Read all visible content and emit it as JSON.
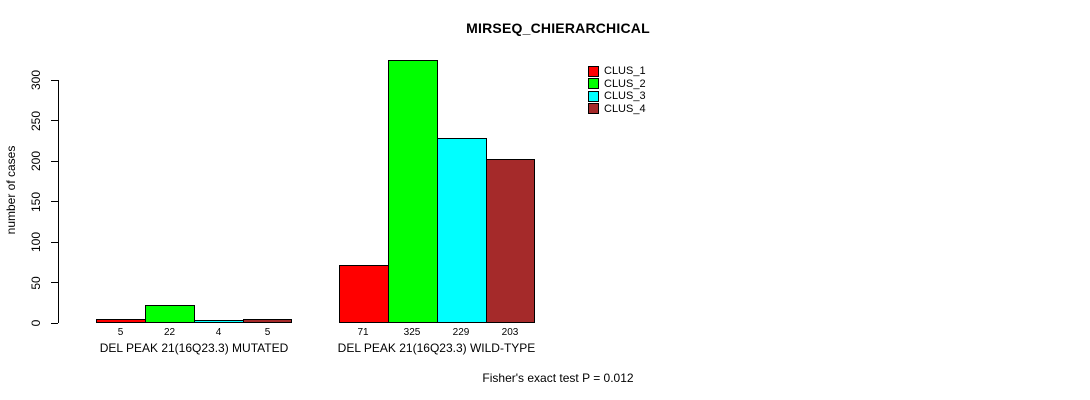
{
  "figure": {
    "title": "MIRSEQ_CHIERARCHICAL",
    "y_axis_label": "number of cases",
    "annotation": "Fisher's exact test P = 0.012"
  },
  "chart_data": {
    "type": "bar",
    "title": "MIRSEQ_CHIERARCHICAL",
    "xlabel": "",
    "ylabel": "number of cases",
    "ylim": [
      0,
      300
    ],
    "yticks": [
      0,
      50,
      100,
      150,
      200,
      250,
      300
    ],
    "grid": false,
    "background": "#ffffff",
    "bar_border_color": "#000000",
    "legend_position": "top-right-inside",
    "categories": [
      "DEL PEAK 21(16Q23.3) MUTATED",
      "DEL PEAK 21(16Q23.3) WILD-TYPE"
    ],
    "series": [
      {
        "name": "CLUS_1",
        "color": "#ff0000",
        "values": [
          5,
          71
        ]
      },
      {
        "name": "CLUS_2",
        "color": "#00ff00",
        "values": [
          22,
          325
        ]
      },
      {
        "name": "CLUS_3",
        "color": "#00ffff",
        "values": [
          4,
          229
        ]
      },
      {
        "name": "CLUS_4",
        "color": "#a52a2a",
        "values": [
          5,
          203
        ]
      }
    ],
    "show_value_labels": true,
    "annotation": "Fisher's exact test P = 0.012"
  }
}
